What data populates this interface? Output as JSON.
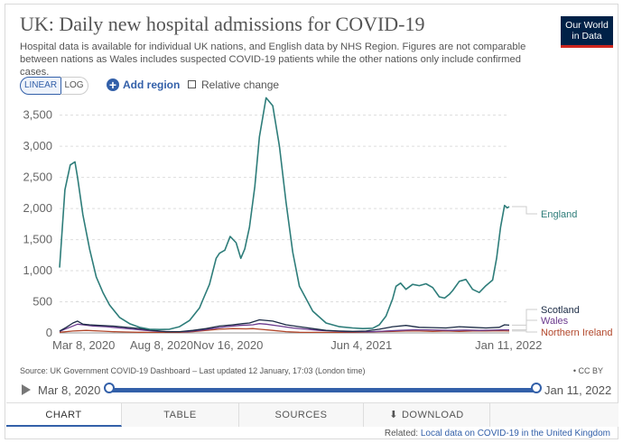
{
  "header": {
    "title": "UK: Daily new hospital admissions for COVID-19",
    "subtitle": "Hospital data is available for individual UK nations, and English data by NHS Region. Figures are not comparable between nations as Wales includes suspected COVID-19 patients while the other nations only include confirmed cases.",
    "logo_line1": "Our World",
    "logo_line2": "in Data"
  },
  "controls": {
    "linear_label": "LINEAR",
    "log_label": "LOG",
    "add_region_label": "Add region",
    "relative_change_label": "Relative change"
  },
  "colors": {
    "england": "#2e7d7a",
    "scotland": "#1a2a44",
    "wales": "#6b3a8e",
    "northern_ireland": "#b2472b",
    "accent": "#3360a9",
    "logo_bg": "#002147",
    "logo_stripe": "#ce261e"
  },
  "chart_data": {
    "type": "line",
    "title": "UK: Daily new hospital admissions for COVID-19",
    "xlabel": "",
    "ylabel": "",
    "x_domain": [
      0,
      675
    ],
    "ylim": [
      0,
      3800
    ],
    "grid": true,
    "y_ticks": [
      0,
      500,
      1000,
      1500,
      2000,
      2500,
      3000,
      3500
    ],
    "y_tick_labels": [
      "0",
      "500",
      "1,000",
      "1,500",
      "2,000",
      "2,500",
      "3,000",
      "3,500"
    ],
    "x_ticks": [
      0,
      153,
      253,
      453,
      674
    ],
    "x_tick_labels": [
      "Mar 8, 2020",
      "Aug 8, 2020",
      "Nov 16, 2020",
      "Jun 4, 2021",
      "Jan 11, 2022"
    ],
    "x_unit": "days since Mar 8, 2020",
    "series": [
      {
        "name": "England",
        "label": "England",
        "key": "england",
        "x": [
          0,
          8,
          16,
          23,
          27,
          35,
          45,
          55,
          65,
          75,
          90,
          105,
          120,
          135,
          150,
          165,
          180,
          195,
          210,
          215,
          225,
          235,
          240,
          248,
          256,
          265,
          272,
          278,
          285,
          293,
          300,
          310,
          320,
          330,
          340,
          350,
          360,
          380,
          400,
          420,
          440,
          455,
          470,
          480,
          490,
          500,
          505,
          512,
          520,
          530,
          540,
          550,
          560,
          570,
          578,
          585,
          590,
          600,
          610,
          620,
          630,
          640,
          650,
          656,
          662,
          668,
          672,
          675
        ],
        "y": [
          1050,
          2300,
          2700,
          2750,
          2500,
          1900,
          1350,
          900,
          650,
          450,
          250,
          150,
          90,
          60,
          55,
          60,
          100,
          200,
          400,
          530,
          780,
          1200,
          1280,
          1330,
          1550,
          1450,
          1200,
          1350,
          1700,
          2350,
          3150,
          3780,
          3650,
          3000,
          2100,
          1300,
          750,
          350,
          160,
          100,
          80,
          70,
          75,
          130,
          270,
          550,
          750,
          800,
          700,
          780,
          760,
          790,
          730,
          580,
          560,
          620,
          680,
          830,
          860,
          700,
          650,
          760,
          850,
          1200,
          1700,
          2050,
          2010,
          2030
        ]
      },
      {
        "name": "Scotland",
        "label": "Scotland",
        "key": "scotland",
        "x": [
          0,
          10,
          20,
          27,
          35,
          45,
          60,
          80,
          100,
          120,
          140,
          160,
          180,
          200,
          220,
          240,
          260,
          275,
          285,
          300,
          320,
          340,
          360,
          380,
          400,
          420,
          440,
          460,
          480,
          500,
          520,
          540,
          560,
          580,
          600,
          620,
          640,
          660,
          668,
          675
        ],
        "y": [
          30,
          90,
          160,
          190,
          140,
          130,
          120,
          110,
          90,
          70,
          40,
          20,
          20,
          40,
          70,
          110,
          130,
          150,
          160,
          210,
          190,
          130,
          100,
          70,
          40,
          30,
          25,
          30,
          60,
          100,
          120,
          90,
          85,
          80,
          100,
          90,
          80,
          90,
          130,
          125
        ]
      },
      {
        "name": "Wales",
        "label": "Wales",
        "key": "wales",
        "x": [
          0,
          15,
          27,
          35,
          50,
          70,
          90,
          110,
          130,
          150,
          170,
          190,
          210,
          230,
          250,
          270,
          290,
          300,
          310,
          330,
          350,
          370,
          390,
          410,
          430,
          450,
          470,
          490,
          510,
          530,
          550,
          570,
          590,
          610,
          630,
          650,
          665,
          675
        ],
        "y": [
          25,
          90,
          140,
          130,
          110,
          100,
          80,
          60,
          40,
          25,
          20,
          20,
          40,
          70,
          100,
          120,
          130,
          150,
          140,
          110,
          80,
          60,
          40,
          30,
          20,
          20,
          20,
          30,
          40,
          50,
          50,
          45,
          40,
          45,
          40,
          45,
          50,
          50
        ]
      },
      {
        "name": "Northern Ireland",
        "label": "Northern Ireland",
        "key": "northern_ireland",
        "x": [
          0,
          20,
          40,
          60,
          80,
          100,
          120,
          140,
          160,
          180,
          200,
          220,
          240,
          260,
          280,
          290,
          300,
          320,
          340,
          360,
          380,
          400,
          420,
          440,
          460,
          480,
          500,
          520,
          540,
          560,
          580,
          600,
          620,
          640,
          660,
          675
        ],
        "y": [
          10,
          30,
          40,
          30,
          20,
          15,
          10,
          8,
          8,
          10,
          20,
          40,
          60,
          70,
          65,
          70,
          60,
          40,
          20,
          10,
          8,
          8,
          8,
          10,
          15,
          20,
          25,
          30,
          30,
          25,
          30,
          25,
          30,
          30,
          35,
          30
        ]
      }
    ]
  },
  "footer": {
    "source_text": "Source: UK Government COVID-19 Dashboard – Last updated 12 January, 17:03 (London time)",
    "license_text": "• CC BY",
    "timeline_start": "Mar 8, 2020",
    "timeline_end": "Jan 11, 2022",
    "tab_chart": "CHART",
    "tab_table": "TABLE",
    "tab_sources": "SOURCES",
    "tab_download": "DOWNLOAD",
    "related_prefix": "Related:",
    "related_link": "Local data on COVID-19 in the United Kingdom"
  }
}
